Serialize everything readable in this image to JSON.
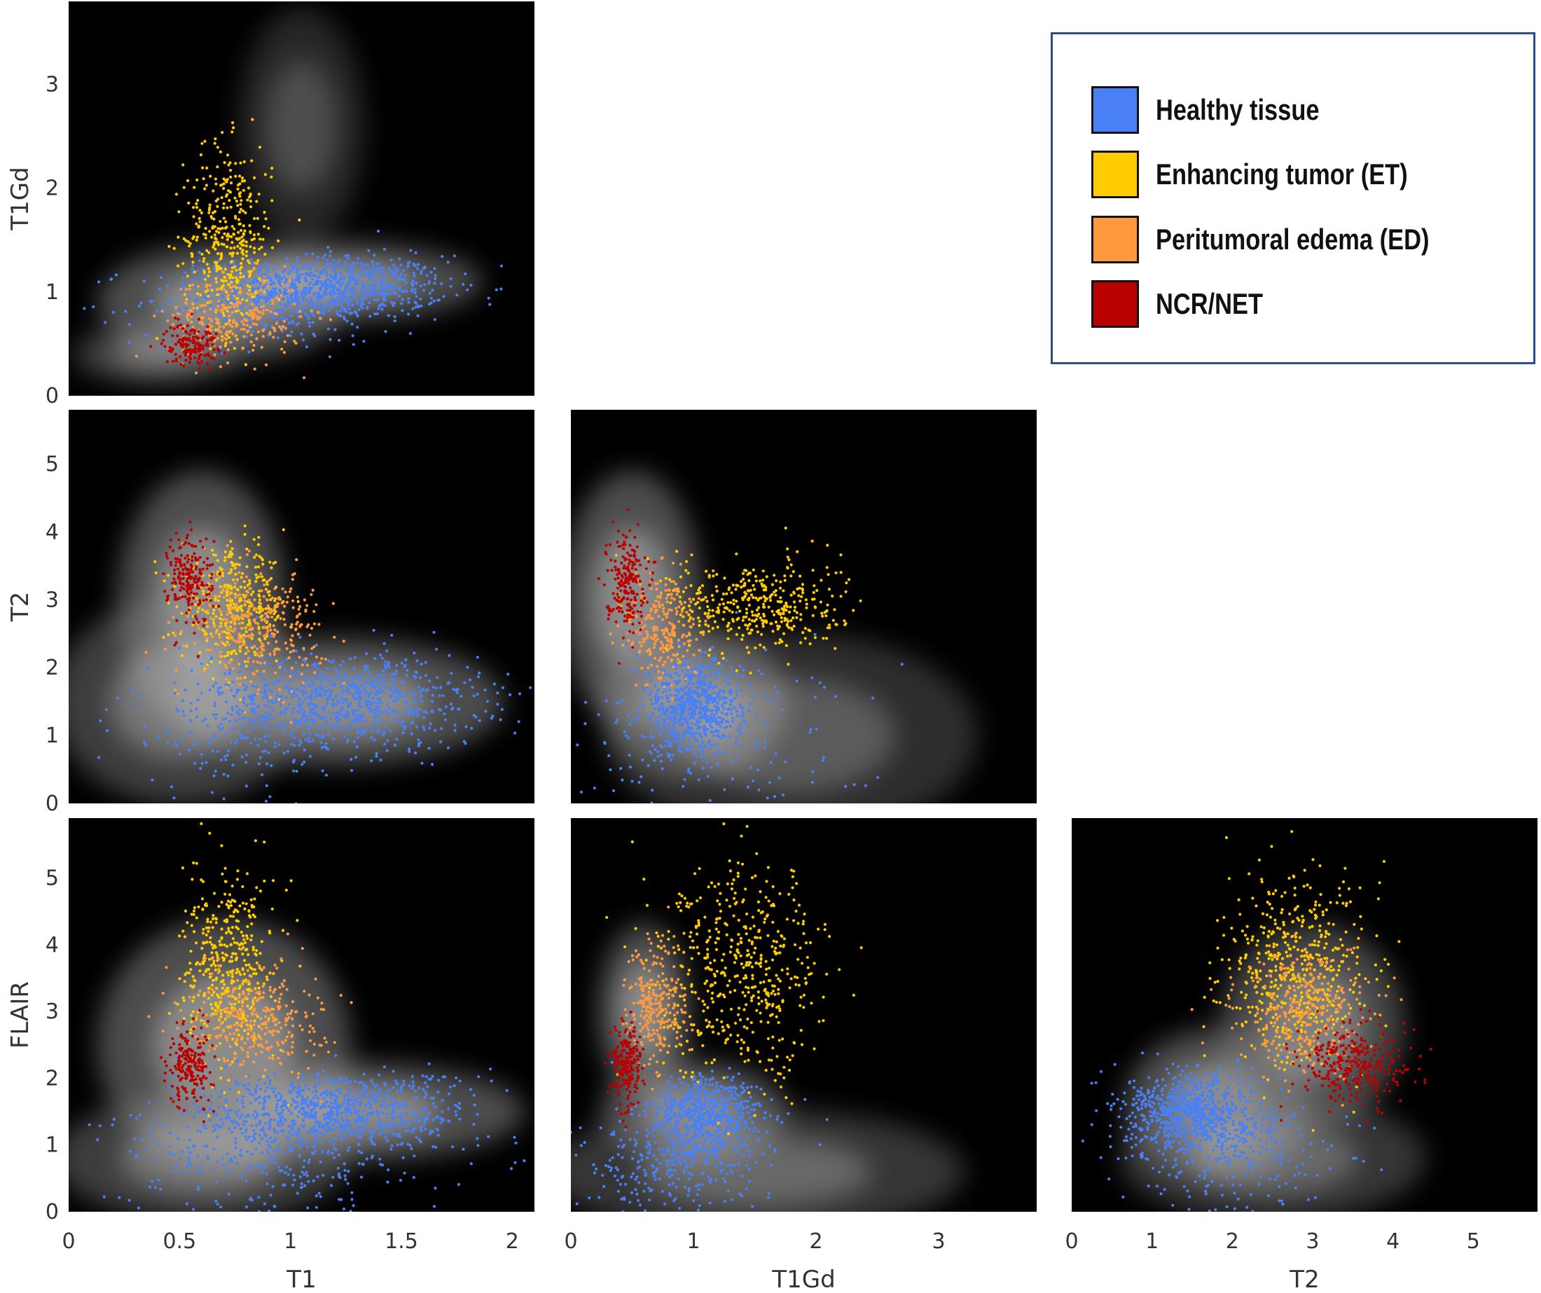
{
  "chart_data": {
    "type": "scatter",
    "description_type": "corner pair-plot: density heatmap of all voxels with class-colored scatter points",
    "legend": {
      "placement": "top-right",
      "entries": [
        {
          "name": "Healthy tissue",
          "color": "#4a80f5"
        },
        {
          "name": "Enhancing tumor (ET)",
          "color": "#ffcc00"
        },
        {
          "name": "Peritumoral edema (ED)",
          "color": "#ff9940"
        },
        {
          "name": "NCR/NET",
          "color": "#bb0000"
        }
      ]
    },
    "axes": {
      "T1": {
        "label": "T1",
        "range": [
          0,
          2.1
        ],
        "ticks": [
          "0",
          "0.5",
          "1",
          "1.5",
          "2"
        ]
      },
      "T1Gd": {
        "label": "T1Gd",
        "range": [
          0,
          3.8
        ],
        "ticks": [
          "0",
          "1",
          "2",
          "3"
        ]
      },
      "T2": {
        "label": "T2",
        "range": [
          0,
          5.8
        ],
        "ticks": [
          "0",
          "1",
          "2",
          "3",
          "4",
          "5"
        ]
      },
      "FLAIR": {
        "label": "FLAIR",
        "range": [
          0,
          5.9
        ],
        "ticks": [
          "0",
          "1",
          "2",
          "3",
          "4",
          "5"
        ]
      }
    },
    "panels": [
      {
        "x": "T1",
        "y": "T1Gd",
        "density": [
          {
            "x": 0.7,
            "y": 0.9,
            "sx": 0.3,
            "sy": 0.3,
            "w": 1.0
          },
          {
            "x": 1.2,
            "y": 1.1,
            "sx": 0.35,
            "sy": 0.2,
            "w": 1.0
          },
          {
            "x": 1.05,
            "y": 2.6,
            "sx": 0.15,
            "sy": 0.6,
            "w": 0.5
          },
          {
            "x": 0.4,
            "y": 0.4,
            "sx": 0.2,
            "sy": 0.15,
            "w": 0.8
          }
        ],
        "series": [
          {
            "name": "Healthy tissue",
            "clusters": [
              {
                "x": 1.2,
                "y": 1.05,
                "sx": 0.25,
                "sy": 0.15,
                "n": 700
              },
              {
                "x": 0.9,
                "y": 0.9,
                "sx": 0.3,
                "sy": 0.2,
                "n": 300
              }
            ]
          },
          {
            "name": "Enhancing tumor (ET)",
            "clusters": [
              {
                "x": 0.72,
                "y": 1.5,
                "sx": 0.1,
                "sy": 0.45,
                "n": 400
              }
            ]
          },
          {
            "name": "Peritumoral edema (ED)",
            "clusters": [
              {
                "x": 0.75,
                "y": 0.75,
                "sx": 0.15,
                "sy": 0.2,
                "n": 250
              }
            ]
          },
          {
            "name": "NCR/NET",
            "clusters": [
              {
                "x": 0.55,
                "y": 0.5,
                "sx": 0.06,
                "sy": 0.1,
                "n": 150
              }
            ]
          }
        ]
      },
      {
        "x": "T1",
        "y": "T2",
        "density": [
          {
            "x": 0.6,
            "y": 3.0,
            "sx": 0.2,
            "sy": 1.0,
            "w": 1.0
          },
          {
            "x": 1.2,
            "y": 1.5,
            "sx": 0.4,
            "sy": 0.5,
            "w": 1.0
          },
          {
            "x": 0.5,
            "y": 1.5,
            "sx": 0.3,
            "sy": 0.8,
            "w": 0.8
          }
        ],
        "series": [
          {
            "name": "Healthy tissue",
            "clusters": [
              {
                "x": 1.25,
                "y": 1.5,
                "sx": 0.3,
                "sy": 0.35,
                "n": 800
              },
              {
                "x": 0.8,
                "y": 1.2,
                "sx": 0.3,
                "sy": 0.6,
                "n": 200
              }
            ]
          },
          {
            "name": "Enhancing tumor (ET)",
            "clusters": [
              {
                "x": 0.75,
                "y": 2.9,
                "sx": 0.12,
                "sy": 0.4,
                "n": 350
              }
            ]
          },
          {
            "name": "Peritumoral edema (ED)",
            "clusters": [
              {
                "x": 0.85,
                "y": 2.6,
                "sx": 0.15,
                "sy": 0.4,
                "n": 300
              }
            ]
          },
          {
            "name": "NCR/NET",
            "clusters": [
              {
                "x": 0.55,
                "y": 3.3,
                "sx": 0.05,
                "sy": 0.35,
                "n": 200
              }
            ]
          }
        ]
      },
      {
        "x": "T1Gd",
        "y": "T2",
        "density": [
          {
            "x": 0.5,
            "y": 3.0,
            "sx": 0.3,
            "sy": 1.0,
            "w": 1.0
          },
          {
            "x": 1.0,
            "y": 1.5,
            "sx": 0.4,
            "sy": 0.6,
            "w": 1.0
          },
          {
            "x": 1.8,
            "y": 1.0,
            "sx": 0.8,
            "sy": 0.8,
            "w": 0.6
          }
        ],
        "series": [
          {
            "name": "Healthy tissue",
            "clusters": [
              {
                "x": 1.0,
                "y": 1.4,
                "sx": 0.2,
                "sy": 0.35,
                "n": 700
              },
              {
                "x": 1.2,
                "y": 1.0,
                "sx": 0.7,
                "sy": 0.7,
                "n": 150
              }
            ]
          },
          {
            "name": "Enhancing tumor (ET)",
            "clusters": [
              {
                "x": 1.5,
                "y": 2.9,
                "sx": 0.35,
                "sy": 0.35,
                "n": 400
              }
            ]
          },
          {
            "name": "Peritumoral edema (ED)",
            "clusters": [
              {
                "x": 0.75,
                "y": 2.6,
                "sx": 0.15,
                "sy": 0.45,
                "n": 250
              }
            ]
          },
          {
            "name": "NCR/NET",
            "clusters": [
              {
                "x": 0.45,
                "y": 3.3,
                "sx": 0.08,
                "sy": 0.35,
                "n": 200
              }
            ]
          }
        ]
      },
      {
        "x": "T1",
        "y": "FLAIR",
        "density": [
          {
            "x": 0.7,
            "y": 2.5,
            "sx": 0.3,
            "sy": 1.0,
            "w": 1.0
          },
          {
            "x": 1.2,
            "y": 1.5,
            "sx": 0.45,
            "sy": 0.4,
            "w": 1.0
          },
          {
            "x": 0.6,
            "y": 0.8,
            "sx": 0.35,
            "sy": 0.5,
            "w": 0.8
          }
        ],
        "series": [
          {
            "name": "Healthy tissue",
            "clusters": [
              {
                "x": 1.2,
                "y": 1.5,
                "sx": 0.3,
                "sy": 0.3,
                "n": 800
              },
              {
                "x": 0.9,
                "y": 0.8,
                "sx": 0.35,
                "sy": 0.45,
                "n": 300
              }
            ]
          },
          {
            "name": "Enhancing tumor (ET)",
            "clusters": [
              {
                "x": 0.72,
                "y": 3.6,
                "sx": 0.1,
                "sy": 0.7,
                "n": 450
              }
            ]
          },
          {
            "name": "Peritumoral edema (ED)",
            "clusters": [
              {
                "x": 0.85,
                "y": 2.9,
                "sx": 0.15,
                "sy": 0.4,
                "n": 300
              }
            ]
          },
          {
            "name": "NCR/NET",
            "clusters": [
              {
                "x": 0.55,
                "y": 2.2,
                "sx": 0.05,
                "sy": 0.3,
                "n": 200
              }
            ]
          }
        ]
      },
      {
        "x": "T1Gd",
        "y": "FLAIR",
        "density": [
          {
            "x": 0.6,
            "y": 3.0,
            "sx": 0.2,
            "sy": 0.7,
            "w": 1.0
          },
          {
            "x": 1.0,
            "y": 1.5,
            "sx": 0.4,
            "sy": 0.4,
            "w": 1.0
          },
          {
            "x": 1.5,
            "y": 0.6,
            "sx": 0.9,
            "sy": 0.5,
            "w": 0.7
          }
        ],
        "series": [
          {
            "name": "Healthy tissue",
            "clusters": [
              {
                "x": 1.1,
                "y": 1.45,
                "sx": 0.22,
                "sy": 0.3,
                "n": 600
              },
              {
                "x": 0.8,
                "y": 0.7,
                "sx": 0.4,
                "sy": 0.4,
                "n": 300
              }
            ]
          },
          {
            "name": "Enhancing tumor (ET)",
            "clusters": [
              {
                "x": 1.4,
                "y": 3.6,
                "sx": 0.35,
                "sy": 0.8,
                "n": 500
              }
            ]
          },
          {
            "name": "Peritumoral edema (ED)",
            "clusters": [
              {
                "x": 0.7,
                "y": 3.1,
                "sx": 0.12,
                "sy": 0.45,
                "n": 250
              }
            ]
          },
          {
            "name": "NCR/NET",
            "clusters": [
              {
                "x": 0.45,
                "y": 2.2,
                "sx": 0.06,
                "sy": 0.3,
                "n": 200
              }
            ]
          }
        ]
      },
      {
        "x": "T2",
        "y": "FLAIR",
        "density": [
          {
            "x": 1.8,
            "y": 1.6,
            "sx": 0.6,
            "sy": 0.6,
            "w": 1.0
          },
          {
            "x": 3.0,
            "y": 2.8,
            "sx": 0.6,
            "sy": 0.8,
            "w": 0.9
          },
          {
            "x": 2.5,
            "y": 0.8,
            "sx": 1.0,
            "sy": 0.5,
            "w": 0.7
          }
        ],
        "series": [
          {
            "name": "Healthy tissue",
            "clusters": [
              {
                "x": 1.5,
                "y": 1.5,
                "sx": 0.4,
                "sy": 0.3,
                "n": 700
              },
              {
                "x": 2.0,
                "y": 0.9,
                "sx": 0.7,
                "sy": 0.5,
                "n": 250
              }
            ]
          },
          {
            "name": "Enhancing tumor (ET)",
            "clusters": [
              {
                "x": 2.8,
                "y": 3.6,
                "sx": 0.45,
                "sy": 0.7,
                "n": 500
              }
            ]
          },
          {
            "name": "Peritumoral edema (ED)",
            "clusters": [
              {
                "x": 2.9,
                "y": 3.0,
                "sx": 0.4,
                "sy": 0.45,
                "n": 300
              }
            ]
          },
          {
            "name": "NCR/NET",
            "clusters": [
              {
                "x": 3.5,
                "y": 2.2,
                "sx": 0.35,
                "sy": 0.3,
                "n": 300
              }
            ]
          }
        ]
      }
    ]
  }
}
